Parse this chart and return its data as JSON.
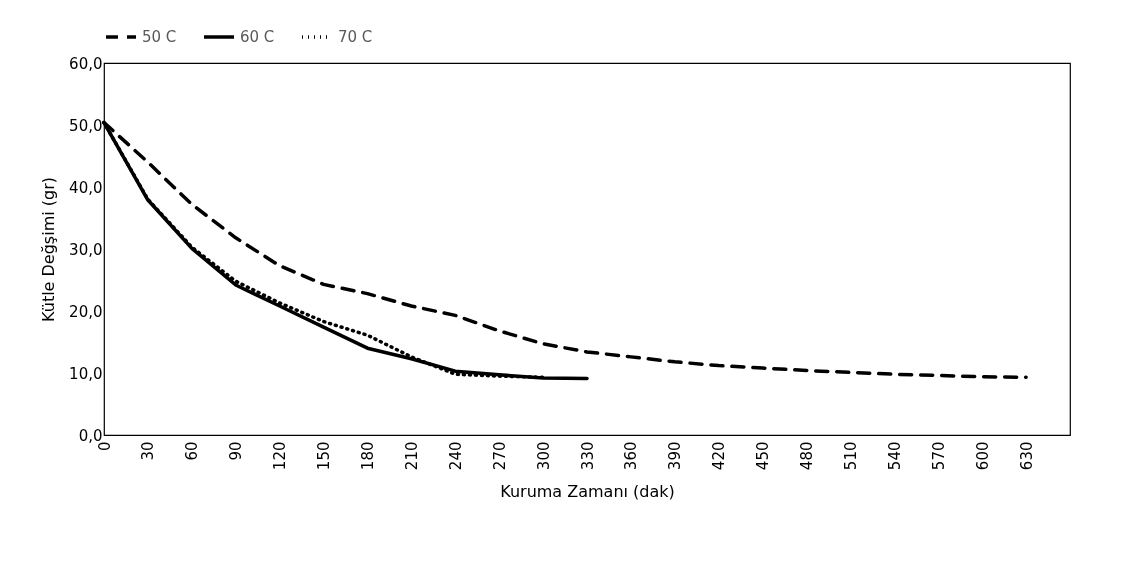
{
  "chart_data": {
    "type": "line",
    "xlabel": "Kuruma Zamanı (dak)",
    "ylabel": "Kütle Değşimi (gr)",
    "xlim": [
      0,
      660
    ],
    "xticks": [
      0,
      30,
      60,
      90,
      120,
      150,
      180,
      210,
      240,
      270,
      300,
      330,
      360,
      390,
      420,
      450,
      480,
      510,
      540,
      570,
      600,
      630
    ],
    "ylim": [
      0,
      60
    ],
    "yticks": [
      {
        "value": 0,
        "label": "0,0"
      },
      {
        "value": 10,
        "label": "10,0"
      },
      {
        "value": 20,
        "label": "20,0"
      },
      {
        "value": 30,
        "label": "30,0"
      },
      {
        "value": 40,
        "label": "40,0"
      },
      {
        "value": 50,
        "label": "50,0"
      },
      {
        "value": 60,
        "label": "60,0"
      }
    ],
    "grid": false,
    "legend": "top",
    "marker": "none",
    "series": [
      {
        "name": "50 C",
        "color": "#000000",
        "line_style": "dashed",
        "x": [
          0,
          30,
          60,
          90,
          120,
          150,
          180,
          210,
          240,
          270,
          300,
          330,
          360,
          390,
          420,
          450,
          480,
          510,
          540,
          570,
          600,
          630
        ],
        "values": [
          50.4,
          44.0,
          37.2,
          31.8,
          27.3,
          24.3,
          22.8,
          20.8,
          19.3,
          16.8,
          14.7,
          13.4,
          12.6,
          11.8,
          11.2,
          10.8,
          10.4,
          10.1,
          9.8,
          9.6,
          9.4,
          9.3
        ]
      },
      {
        "name": "60 C",
        "color": "#000000",
        "line_style": "solid",
        "x": [
          0,
          30,
          60,
          90,
          120,
          150,
          180,
          210,
          240,
          270,
          300,
          330
        ],
        "values": [
          50.4,
          37.9,
          30.1,
          24.2,
          20.8,
          17.4,
          14.0,
          12.3,
          10.3,
          9.7,
          9.2,
          9.1
        ]
      },
      {
        "name": "70 C",
        "color": "#000000",
        "line_style": "dotted",
        "x": [
          0,
          30,
          60,
          90,
          120,
          150,
          180,
          210,
          240,
          270,
          300
        ],
        "values": [
          50.4,
          38.0,
          30.3,
          24.8,
          21.3,
          18.3,
          16.1,
          12.6,
          9.8,
          9.5,
          9.3
        ]
      }
    ]
  }
}
